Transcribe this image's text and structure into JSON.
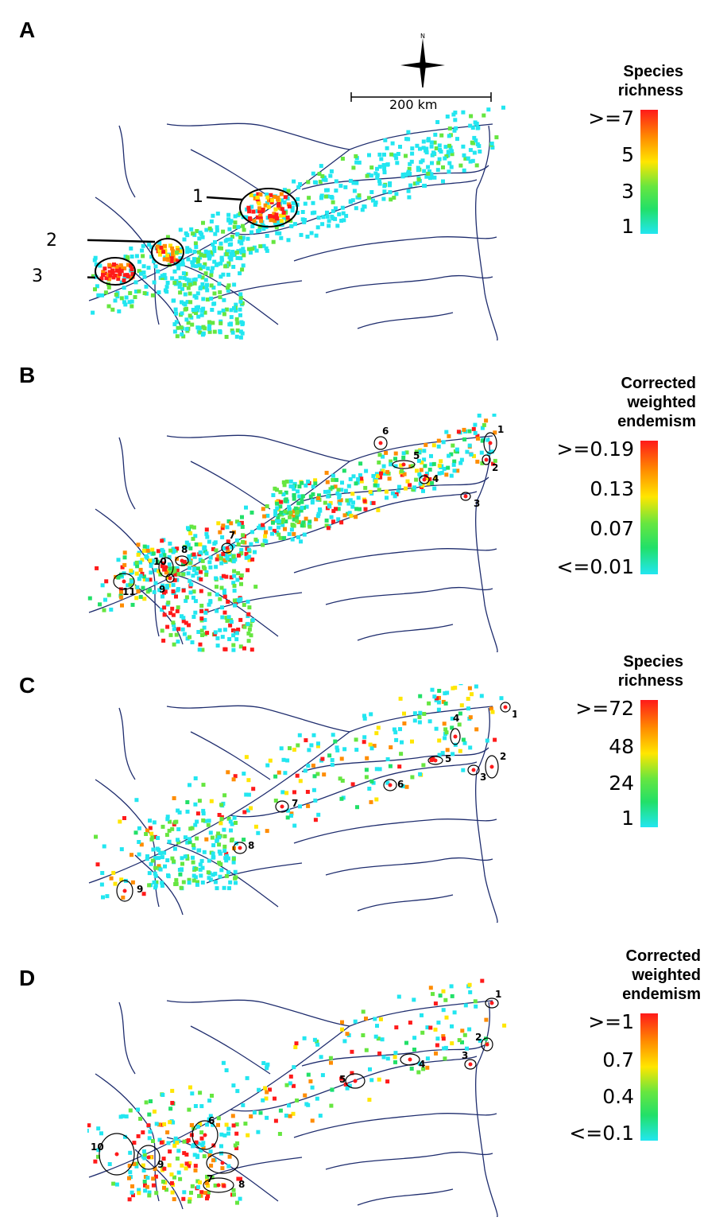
{
  "panels": {
    "A": {
      "letter": "A",
      "legend": {
        "title_1": "Species",
        "title_2": "richness",
        "ticks": [
          ">=7",
          "5",
          "3",
          "1"
        ]
      },
      "hotspots": [
        "1",
        "2",
        "3"
      ]
    },
    "B": {
      "letter": "B",
      "legend": {
        "title_1": "Corrected",
        "title_2": "weighted",
        "title_3": "endemism",
        "ticks": [
          ">=0.19",
          "0.13",
          "0.07",
          "<=0.01"
        ]
      },
      "hotspots": [
        "1",
        "2",
        "3",
        "4",
        "5",
        "6",
        "7",
        "8",
        "9",
        "10",
        "11"
      ]
    },
    "C": {
      "letter": "C",
      "legend": {
        "title_1": "Species",
        "title_2": "richness",
        "ticks": [
          ">=72",
          "48",
          "24",
          "1"
        ]
      },
      "hotspots": [
        "1",
        "2",
        "3",
        "4",
        "5",
        "6",
        "7",
        "8",
        "9"
      ]
    },
    "D": {
      "letter": "D",
      "legend": {
        "title_1": "Corrected",
        "title_2": "weighted",
        "title_3": "endemism",
        "ticks": [
          ">=1",
          "0.7",
          "0.4",
          "<=0.1"
        ]
      },
      "hotspots": [
        "1",
        "2",
        "3",
        "4",
        "5",
        "6",
        "7",
        "8",
        "9",
        "10"
      ]
    }
  },
  "north_arrow": {
    "label": "N"
  },
  "scale_bar": {
    "label": "200 km"
  },
  "colors": {
    "river": "#1f2d6e",
    "low": "#22e6f0",
    "mid_low": "#66e640",
    "mid": "#ffe600",
    "mid_high": "#ff8c00",
    "high": "#ff1a1a"
  }
}
